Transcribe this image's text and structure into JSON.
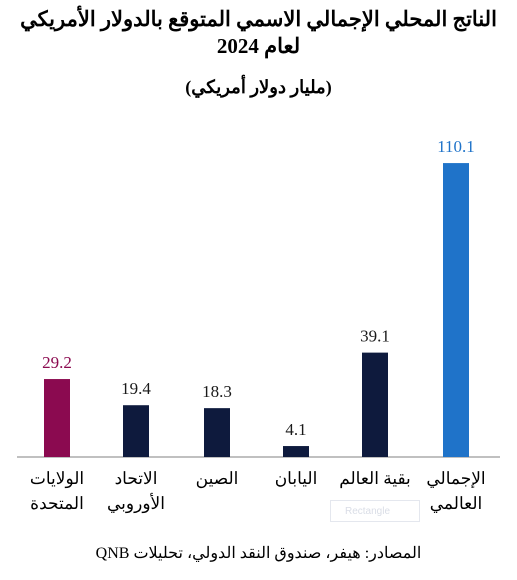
{
  "title_line1": "الناتج المحلي الإجمالي الاسمي المتوقع بالدولار الأمريكي",
  "title_line2": "لعام 2024",
  "subtitle": "(مليار دولار أمريكي)",
  "source": "المصادر: هيفر، صندوق النقد الدولي، تحليلات QNB",
  "watermark": "Rectangle",
  "colors": {
    "us": "#8b0a50",
    "default": "#0e1a3d",
    "world": "#1f73c9"
  },
  "chart_data": {
    "type": "bar",
    "title": "الناتج المحلي الإجمالي الاسمي المتوقع بالدولار الأمريكي لعام 2024",
    "ylabel": "(مليار دولار أمريكي)",
    "ylim": [
      0,
      115
    ],
    "grid": false,
    "categories": [
      [
        "الولايات",
        "المتحدة"
      ],
      [
        "الاتحاد",
        "الأوروبي"
      ],
      [
        "الصين"
      ],
      [
        "اليابان"
      ],
      [
        "بقية العالم"
      ],
      [
        "الإجمالي",
        "العالمي"
      ]
    ],
    "values": [
      29.2,
      19.4,
      18.3,
      4.1,
      39.1,
      110.1
    ],
    "value_labels": [
      "29.2",
      "19.4",
      "18.3",
      "4.1",
      "39.1",
      "110.1"
    ],
    "bar_colors": [
      "#8b0a50",
      "#0e1a3d",
      "#0e1a3d",
      "#0e1a3d",
      "#0e1a3d",
      "#1f73c9"
    ]
  }
}
